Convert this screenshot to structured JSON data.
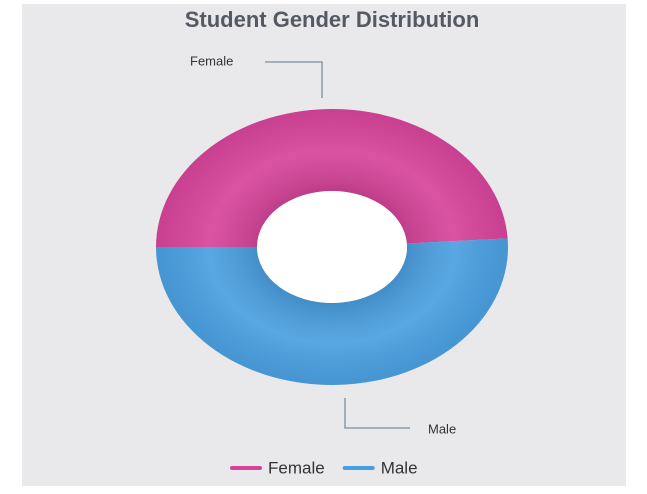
{
  "chart_data": {
    "type": "donut",
    "title": "Student Gender Distribution",
    "categories": [
      "Female",
      "Male"
    ],
    "values": [
      49,
      51
    ],
    "colors": [
      "#d6449a",
      "#4a9fe0"
    ],
    "legend": "bottom"
  }
}
